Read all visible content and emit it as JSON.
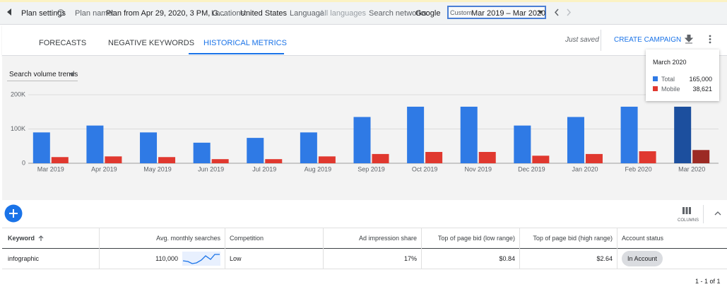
{
  "top_bar": {
    "title": "Plan settings",
    "items": [
      {
        "label": "Plan name:",
        "value": "Plan from Apr 29, 2020, 3 PM, G..."
      },
      {
        "label": "Locations:",
        "value": "United States"
      },
      {
        "label": "Language:",
        "value": "All languages"
      },
      {
        "label": "Search networks:",
        "value": "Google"
      }
    ],
    "date_range": {
      "label": "Custom",
      "value": "Mar 2019 – Mar 2020"
    }
  },
  "tabs": {
    "items": [
      "FORECASTS",
      "NEGATIVE KEYWORDS",
      "HISTORICAL METRICS"
    ],
    "active": "HISTORICAL METRICS",
    "status": "Just saved",
    "action": "CREATE CAMPAIGN"
  },
  "chart_selector": "Search volume trends",
  "chart_data": {
    "type": "bar",
    "categories": [
      "Mar 2019",
      "Apr 2019",
      "May 2019",
      "Jun 2019",
      "Jul 2019",
      "Aug 2019",
      "Sep 2019",
      "Oct 2019",
      "Nov 2019",
      "Dec 2019",
      "Jan 2020",
      "Feb 2020",
      "Mar 2020"
    ],
    "series": [
      {
        "name": "Total",
        "color": "#2f7ae5",
        "highlight_color": "#1c4f9e",
        "values": [
          90000,
          110000,
          90000,
          60000,
          74000,
          90000,
          135000,
          165000,
          165000,
          110000,
          135000,
          165000,
          165000
        ],
        "value_labels": [
          null,
          null,
          null,
          null,
          null,
          null,
          null,
          null,
          null,
          null,
          null,
          null,
          "165,000"
        ]
      },
      {
        "name": "Mobile",
        "color": "#e0382f",
        "highlight_color": "#9c2a24",
        "values": [
          18000,
          20000,
          18000,
          12000,
          12000,
          20000,
          27000,
          33000,
          33000,
          22000,
          27000,
          35000,
          38621
        ],
        "value_labels": [
          null,
          null,
          null,
          null,
          null,
          null,
          null,
          null,
          null,
          null,
          null,
          null,
          "38,621"
        ]
      }
    ],
    "highlighted_category": "Mar 2020",
    "tooltip_title": "March 2020",
    "ylim": [
      0,
      200000
    ],
    "yticks": [
      0,
      {
        "value": 100000,
        "label": "100K"
      },
      {
        "value": 200000,
        "label": "200K"
      }
    ],
    "grid": true
  },
  "columns_button": "COLUMNS",
  "table": {
    "header": [
      "Keyword",
      "Avg. monthly searches",
      "Competition",
      "Ad impression share",
      "Top of page bid (low range)",
      "Top of page bid (high range)",
      "Account status"
    ],
    "rows": [
      [
        "infographic",
        "110,000",
        "Low",
        "17%",
        "$0.84",
        "$2.64",
        "In Account"
      ]
    ]
  },
  "pagination": "1 - 1 of 1"
}
